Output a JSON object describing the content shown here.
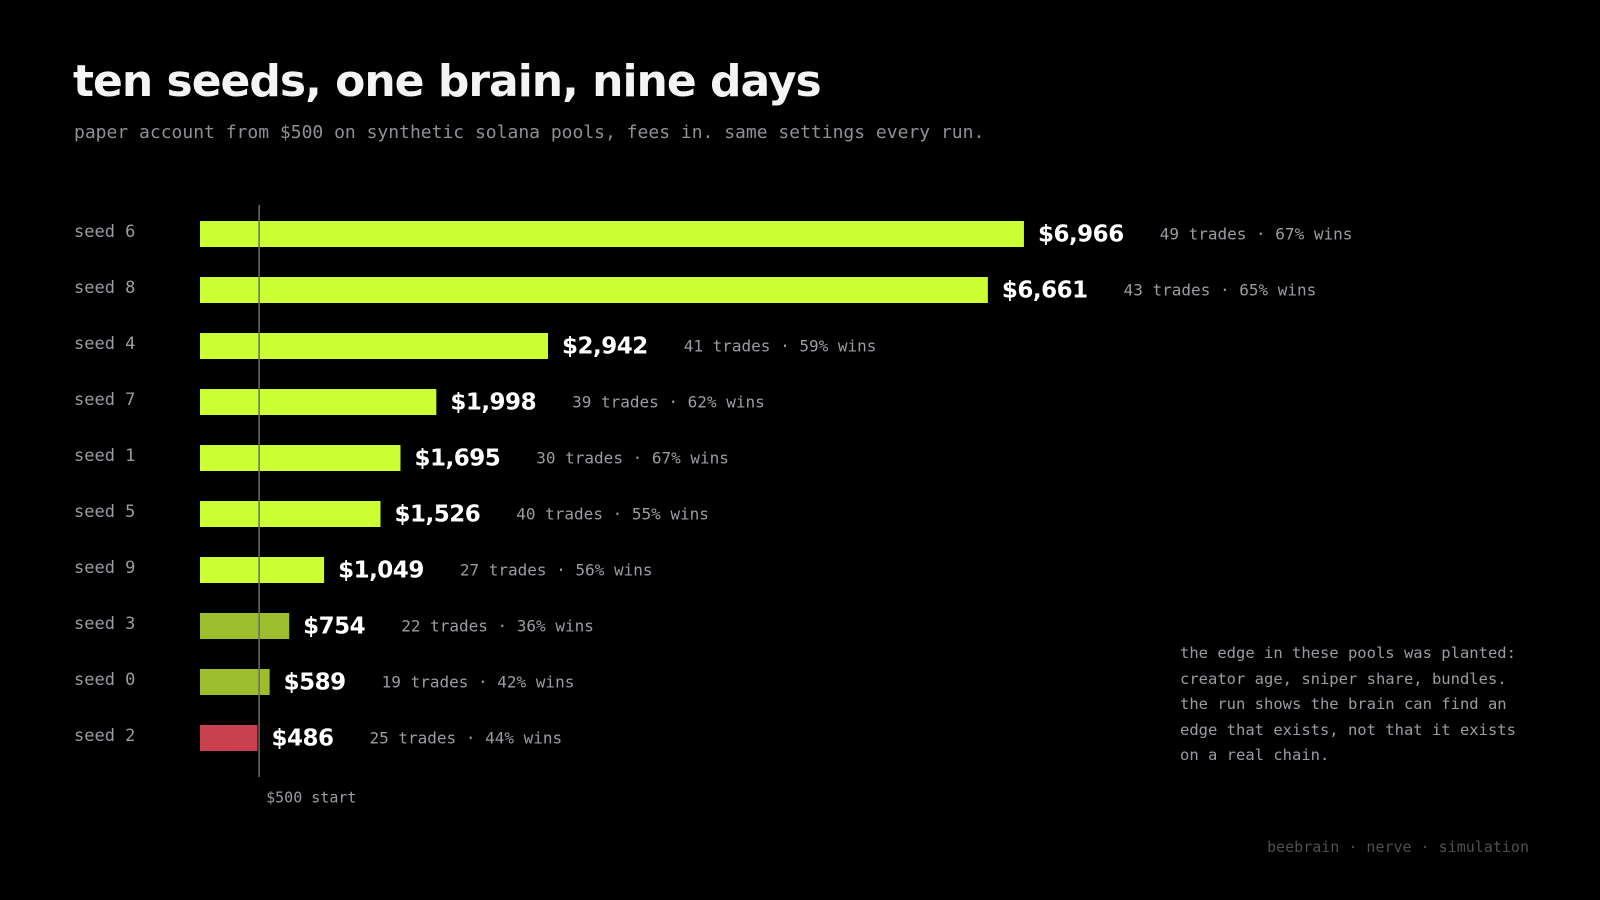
{
  "header": {
    "title": "ten seeds, one brain, nine days",
    "subtitle": "paper account from $500 on synthetic solana pools, fees in. same settings every run."
  },
  "chart_data": {
    "type": "bar",
    "orientation": "horizontal",
    "categories": [
      "seed 6",
      "seed 8",
      "seed 4",
      "seed 7",
      "seed 1",
      "seed 5",
      "seed 9",
      "seed 3",
      "seed 0",
      "seed 2"
    ],
    "values": [
      6966,
      6661,
      2942,
      1998,
      1695,
      1526,
      1049,
      754,
      589,
      486
    ],
    "value_labels": [
      "$6,966",
      "$6,661",
      "$2,942",
      "$1,998",
      "$1,695",
      "$1,526",
      "$1,049",
      "$754",
      "$589",
      "$486"
    ],
    "stat_labels": [
      "49 trades · 67% wins",
      "43 trades · 65% wins",
      "41 trades · 59% wins",
      "39 trades · 62% wins",
      "30 trades · 67% wins",
      "40 trades · 55% wins",
      "27 trades · 56% wins",
      "22 trades · 36% wins",
      "19 trades · 42% wins",
      "25 trades · 44% wins"
    ],
    "baseline": {
      "value": 500,
      "label": "$500 start"
    },
    "xlim": [
      0,
      7000
    ],
    "grid": false,
    "colors": {
      "strong": "#ccff33",
      "modest": "#9bbd2e",
      "loss": "#c9414f",
      "baseline": "#6b6b70"
    },
    "color_thresholds": {
      "strong_min": 1000
    }
  },
  "note": {
    "text": "the edge in these pools was planted:\ncreator age, sniper share, bundles.\nthe run shows the brain can find an\nedge that exists, not that it exists\non a real chain."
  },
  "footer": {
    "credit": "beebrain · nerve · simulation"
  }
}
